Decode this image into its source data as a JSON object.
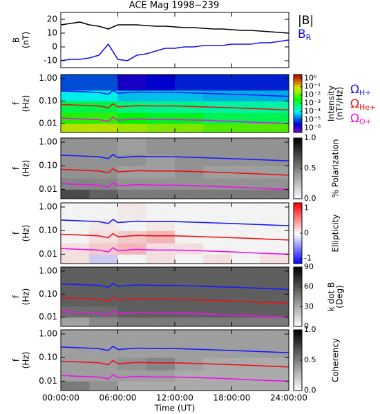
{
  "chart_data": [
    {
      "type": "line",
      "title": "ACE Mag 1998−239",
      "ylabel": [
        "B",
        "(nT)"
      ],
      "x": [
        0,
        1,
        2,
        3,
        4,
        5,
        6,
        7,
        8,
        9,
        10,
        11,
        12,
        13,
        14,
        15,
        16,
        17,
        18,
        19,
        20,
        21,
        22,
        23,
        24
      ],
      "xlim": [
        0,
        24
      ],
      "ylim": [
        -15,
        25
      ],
      "yticks": [
        -10,
        0,
        10,
        20
      ],
      "series": [
        {
          "name": "|B|",
          "color": "#000000",
          "values": [
            16,
            17,
            18,
            16,
            15,
            13,
            16,
            16,
            16,
            15.5,
            15,
            15,
            14.5,
            14,
            14,
            13.5,
            13,
            13,
            12.5,
            12,
            12,
            11.5,
            11,
            10.5,
            10
          ]
        },
        {
          "name": "B",
          "subscript": "R",
          "color": "#1010ee",
          "values": [
            -10,
            -9,
            -9,
            -8,
            -6,
            2,
            -9,
            -10,
            -6,
            -5,
            -3,
            -1,
            -1,
            0,
            0,
            1,
            1,
            1,
            2,
            2,
            2,
            3,
            3,
            4,
            5
          ]
        }
      ]
    },
    {
      "type": "heatmap",
      "ylabel": [
        "f",
        "(Hz)"
      ],
      "xlim": [
        0,
        24
      ],
      "ylim": [
        0.004,
        1.5
      ],
      "log_y": true,
      "yticks": [
        {
          "value": 1,
          "label": "1.00"
        },
        {
          "value": 0.1,
          "label": "0.10"
        },
        {
          "value": 0.01,
          "label": "0.01"
        }
      ],
      "x_edges": [
        0,
        3,
        6,
        9,
        12,
        15,
        18,
        21,
        24
      ],
      "y_edges": [
        0.004,
        0.01,
        0.03,
        0.1,
        0.3,
        1.5
      ],
      "z": [
        [
          0.05,
          0.05,
          0.03,
          0.02,
          0.02,
          0.01,
          0.01,
          0.01
        ],
        [
          0.005,
          0.006,
          0.003,
          0.002,
          0.002,
          0.001,
          0.001,
          0.001
        ],
        [
          0.001,
          0.001,
          0.0005,
          0.0004,
          0.0004,
          0.0003,
          0.0003,
          0.0003
        ],
        [
          0.0001,
          0.0001,
          5e-05,
          5e-05,
          5e-05,
          4e-05,
          4e-05,
          4e-05
        ],
        [
          1e-05,
          1e-05,
          2e-06,
          3e-06,
          5e-06,
          5e-06,
          5e-06,
          5e-06
        ]
      ],
      "colormap": "rainbow",
      "log_z": true,
      "zlim": [
        3e-07,
        3
      ],
      "zticks": [
        {
          "value": 1,
          "label": "10⁰"
        },
        {
          "value": 0.1,
          "label": "10⁻¹"
        },
        {
          "value": 0.01,
          "label": "10⁻²"
        },
        {
          "value": 0.001,
          "label": "10⁻³"
        },
        {
          "value": 0.0001,
          "label": "10⁻⁴"
        },
        {
          "value": 1e-05,
          "label": "10⁻⁵"
        },
        {
          "value": 1e-06,
          "label": "10⁻⁶"
        }
      ],
      "colorbar_label": [
        "Intensity",
        "(nT²/Hz)"
      ],
      "x": [
        0,
        2,
        4,
        5,
        5.5,
        6,
        8,
        10,
        12,
        15,
        18,
        21,
        24
      ],
      "series": [
        {
          "name": "Ω",
          "subscript": "H+",
          "color": "#1a1aff",
          "values": [
            0.28,
            0.26,
            0.24,
            0.2,
            0.3,
            0.22,
            0.25,
            0.24,
            0.24,
            0.22,
            0.2,
            0.18,
            0.16
          ]
        },
        {
          "name": "Ω",
          "subscript": "He+",
          "color": "#ee1111",
          "values": [
            0.07,
            0.065,
            0.06,
            0.05,
            0.075,
            0.055,
            0.062,
            0.06,
            0.06,
            0.055,
            0.05,
            0.045,
            0.04
          ]
        },
        {
          "name": "Ω",
          "subscript": "O+",
          "color": "#ee11ee",
          "values": [
            0.0175,
            0.016,
            0.015,
            0.0125,
            0.019,
            0.014,
            0.016,
            0.015,
            0.015,
            0.014,
            0.0125,
            0.011,
            0.01
          ]
        }
      ]
    },
    {
      "type": "heatmap",
      "ylabel": [
        "f",
        "(Hz)"
      ],
      "xlim": [
        0,
        24
      ],
      "ylim": [
        0.004,
        1.5
      ],
      "log_y": true,
      "yticks": [
        {
          "value": 1,
          "label": "1.00"
        },
        {
          "value": 0.1,
          "label": "0.10"
        },
        {
          "value": 0.01,
          "label": "0.01"
        }
      ],
      "x_edges": [
        0,
        3,
        6,
        9,
        12,
        15,
        18,
        21,
        24
      ],
      "y_edges": [
        0.004,
        0.01,
        0.03,
        0.1,
        0.3,
        1.5
      ],
      "z": [
        [
          0.7,
          0.6,
          0.5,
          0.5,
          0.5,
          0.5,
          0.5,
          0.5
        ],
        [
          0.45,
          0.45,
          0.4,
          0.4,
          0.4,
          0.4,
          0.4,
          0.4
        ],
        [
          0.4,
          0.4,
          0.35,
          0.35,
          0.4,
          0.35,
          0.35,
          0.35
        ],
        [
          0.4,
          0.4,
          0.4,
          0.35,
          0.4,
          0.4,
          0.4,
          0.4
        ],
        [
          0.4,
          0.4,
          0.35,
          0.4,
          0.4,
          0.4,
          0.4,
          0.4
        ]
      ],
      "colormap": "gray",
      "zlim": [
        0,
        1
      ],
      "zticks": [
        {
          "value": 1,
          "label": "1.0"
        },
        {
          "value": 0.5,
          "label": "0.5"
        },
        {
          "value": 0,
          "label": "0.0"
        }
      ],
      "colorbar_label": [
        "% Polarization"
      ]
    },
    {
      "type": "heatmap",
      "ylabel": [
        "f",
        "(Hz)"
      ],
      "xlim": [
        0,
        24
      ],
      "ylim": [
        0.004,
        1.5
      ],
      "log_y": true,
      "yticks": [
        {
          "value": 1,
          "label": "1.00"
        },
        {
          "value": 0.1,
          "label": "0.10"
        },
        {
          "value": 0.01,
          "label": "0.01"
        }
      ],
      "x_edges": [
        0,
        3,
        6,
        9,
        12,
        15,
        18,
        21,
        24
      ],
      "y_edges": [
        0.004,
        0.01,
        0.03,
        0.1,
        0.3,
        1.5
      ],
      "z": [
        [
          0.1,
          -0.2,
          0,
          0.1,
          0,
          0.1,
          0,
          0.1
        ],
        [
          0.1,
          0.2,
          0.3,
          0.1,
          0.1,
          0,
          0,
          0
        ],
        [
          0,
          0.1,
          0.2,
          0.3,
          0,
          0,
          0,
          0
        ],
        [
          0,
          0.05,
          0,
          0.05,
          0,
          0,
          0,
          0
        ],
        [
          0,
          0,
          0.05,
          0,
          0,
          0,
          0,
          0
        ]
      ],
      "colormap": "bwr",
      "zlim": [
        -1.2,
        1.2
      ],
      "zticks": [
        1,
        0,
        -1
      ],
      "colorbar_label": [
        "Ellipticity"
      ]
    },
    {
      "type": "heatmap",
      "ylabel": [
        "f",
        "(Hz)"
      ],
      "xlim": [
        0,
        24
      ],
      "ylim": [
        0.004,
        1.5
      ],
      "log_y": true,
      "yticks": [
        {
          "value": 1,
          "label": "1.00"
        },
        {
          "value": 0.1,
          "label": "0.10"
        },
        {
          "value": 0.01,
          "label": "0.01"
        }
      ],
      "x_edges": [
        0,
        3,
        6,
        9,
        12,
        15,
        18,
        21,
        24
      ],
      "y_edges": [
        0.004,
        0.01,
        0.03,
        0.1,
        0.3,
        1.5
      ],
      "z": [
        [
          30,
          40,
          45,
          45,
          45,
          45,
          45,
          45
        ],
        [
          50,
          50,
          55,
          55,
          55,
          55,
          55,
          55
        ],
        [
          55,
          55,
          55,
          55,
          55,
          55,
          55,
          55
        ],
        [
          55,
          55,
          55,
          55,
          55,
          55,
          55,
          55
        ],
        [
          55,
          55,
          55,
          55,
          55,
          55,
          55,
          55
        ]
      ],
      "colormap": "gray",
      "zlim": [
        0,
        90
      ],
      "zticks": [
        90,
        60,
        30,
        0
      ],
      "colorbar_label": [
        "k dot B",
        "(Deg)"
      ]
    },
    {
      "type": "heatmap",
      "ylabel": [
        "f",
        "(Hz)"
      ],
      "xlim": [
        0,
        24
      ],
      "ylim": [
        0.004,
        1.5
      ],
      "log_y": true,
      "yticks": [
        {
          "value": 1,
          "label": "1.00"
        },
        {
          "value": 0.1,
          "label": "0.10"
        },
        {
          "value": 0.01,
          "label": "0.01"
        }
      ],
      "x_edges": [
        0,
        3,
        6,
        9,
        12,
        15,
        18,
        21,
        24
      ],
      "y_edges": [
        0.004,
        0.01,
        0.03,
        0.1,
        0.3,
        1.5
      ],
      "z": [
        [
          0.5,
          0.4,
          0.3,
          0.3,
          0.3,
          0.3,
          0.3,
          0.3
        ],
        [
          0.35,
          0.35,
          0.35,
          0.35,
          0.3,
          0.3,
          0.3,
          0.3
        ],
        [
          0.35,
          0.35,
          0.4,
          0.45,
          0.35,
          0.3,
          0.3,
          0.3
        ],
        [
          0.35,
          0.35,
          0.35,
          0.35,
          0.35,
          0.35,
          0.35,
          0.35
        ],
        [
          0.35,
          0.35,
          0.35,
          0.35,
          0.35,
          0.35,
          0.35,
          0.35
        ]
      ],
      "colormap": "gray",
      "zlim": [
        0,
        1
      ],
      "zticks": [
        {
          "value": 1,
          "label": "1.0"
        },
        {
          "value": 0.5,
          "label": "0.5"
        },
        {
          "value": 0,
          "label": "0.0"
        }
      ],
      "colorbar_label": [
        "Coherency"
      ],
      "xticks": [
        {
          "value": 0,
          "label": "00:00:00"
        },
        {
          "value": 6,
          "label": "06:00:00"
        },
        {
          "value": 12,
          "label": "12:00:00"
        },
        {
          "value": 18,
          "label": "18:00:00"
        },
        {
          "value": 24,
          "label": "24:00:00"
        }
      ],
      "xlabel": "Time (UT)"
    }
  ]
}
